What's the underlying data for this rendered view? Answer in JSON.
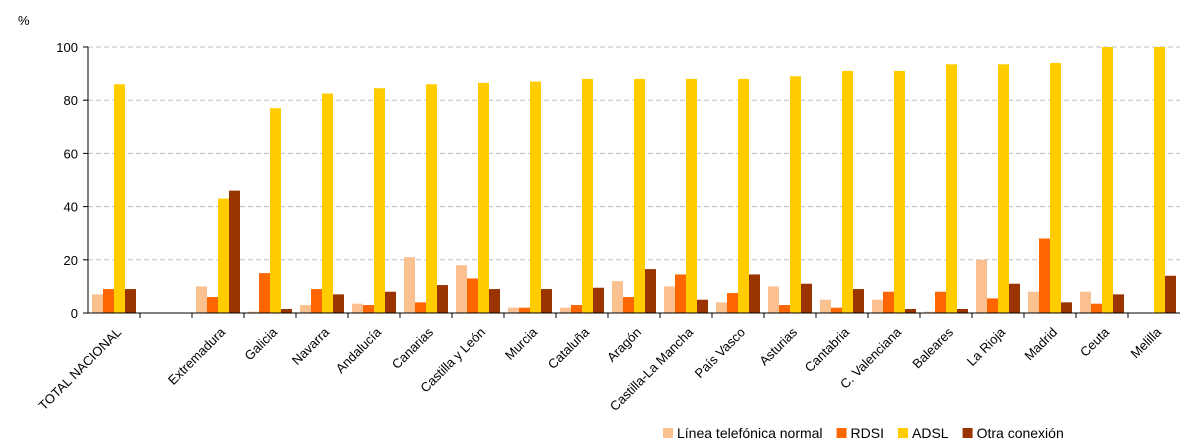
{
  "chart_data": {
    "type": "bar",
    "ylabel": "%",
    "ylim": [
      0,
      100
    ],
    "yticks": [
      0,
      20,
      40,
      60,
      80,
      100
    ],
    "grid": true,
    "legend_position": "bottom-right",
    "categories": [
      "TOTAL NACIONAL",
      "",
      "Extremadura",
      "Galicia",
      "Navarra",
      "Andalucía",
      "Canarias",
      "Castilla y León",
      "Murcia",
      "Cataluña",
      "Aragón",
      "Castilla-La Mancha",
      "País Vasco",
      "Asturias",
      "Cantabria",
      "C. Valenciana",
      "Baleares",
      "La Rioja",
      "Madrid",
      "Ceuta",
      "Melilla"
    ],
    "series": [
      {
        "name": "Línea telefónica normal",
        "color": "#FAC090",
        "values": [
          7,
          null,
          10,
          0.5,
          3,
          3.5,
          21,
          18,
          2,
          2,
          12,
          10,
          4,
          10,
          5,
          5,
          0.5,
          20,
          8,
          8,
          0
        ]
      },
      {
        "name": "RDSI",
        "color": "#FF6600",
        "values": [
          9,
          null,
          6,
          15,
          9,
          3,
          4,
          13,
          2,
          3,
          6,
          14.5,
          7.5,
          3,
          2,
          8,
          8,
          5.5,
          28,
          3.5,
          0
        ]
      },
      {
        "name": "ADSL",
        "color": "#FFCC00",
        "values": [
          86,
          null,
          43,
          77,
          82.5,
          84.5,
          86,
          86.5,
          87,
          88,
          88,
          88,
          88,
          89,
          91,
          91,
          93.5,
          93.5,
          94,
          100,
          100
        ]
      },
      {
        "name": "Otra conexión",
        "color": "#993300",
        "values": [
          9,
          null,
          46,
          1.5,
          7,
          8,
          10.5,
          9,
          9,
          9.5,
          16.5,
          5,
          14.5,
          11,
          9,
          1.5,
          1.5,
          11,
          4,
          7,
          14
        ]
      }
    ]
  }
}
